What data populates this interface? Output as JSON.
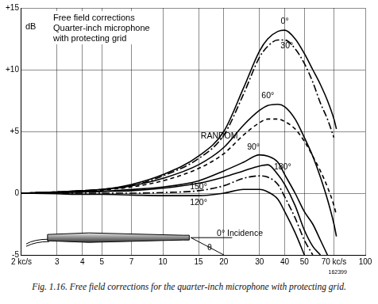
{
  "chart_data": {
    "type": "line",
    "title": [
      "Free field corrections",
      "Quarter-inch microphone",
      "with protecting grid"
    ],
    "y_label": "dB",
    "caption": "Fig. 1.16. Free field corrections for the quarter-inch microphone with protecting grid.",
    "log": "x",
    "grid": true,
    "xlim": [
      2,
      100
    ],
    "ylim": [
      -5,
      15
    ],
    "xticks": [
      {
        "value": 2,
        "label": "2 kc/s"
      },
      3,
      4,
      5,
      7,
      10,
      15,
      20,
      30,
      40,
      50,
      {
        "value": 70,
        "label": "70 kc/s"
      },
      100
    ],
    "yticks": [
      {
        "value": 15,
        "label": "+15"
      },
      {
        "value": 10,
        "label": "+10"
      },
      {
        "value": 5,
        "label": "+5"
      },
      0,
      -5
    ],
    "x": [
      2,
      3,
      4,
      5,
      7,
      10,
      15,
      20,
      25,
      30,
      33,
      37,
      40,
      45,
      50,
      55,
      60,
      65,
      70,
      72
    ],
    "series": [
      {
        "name": "0°",
        "color": "#000000",
        "line_style": "solid",
        "label_x": 40,
        "label_y": 13.9,
        "values": [
          0,
          0.1,
          0.2,
          0.3,
          0.7,
          1.5,
          3,
          5,
          8.5,
          11.5,
          12.5,
          13.1,
          13.2,
          12.5,
          11.3,
          10,
          8.8,
          7.5,
          6,
          5.2
        ]
      },
      {
        "name": "30°",
        "color": "#000000",
        "line_style": "dashdot",
        "label_x": 41,
        "label_y": 11.9,
        "values": [
          0,
          0.1,
          0.2,
          0.3,
          0.6,
          1.4,
          2.8,
          4.7,
          8,
          11,
          11.9,
          12.4,
          12.4,
          11.7,
          10.5,
          9,
          7.3,
          6,
          4.5,
          null
        ]
      },
      {
        "name": "60°",
        "color": "#000000",
        "line_style": "solid",
        "label_x": 33,
        "label_y": 7.9,
        "values": [
          0,
          0.1,
          0.2,
          0.3,
          0.6,
          1.2,
          2.3,
          3.7,
          5.5,
          6.7,
          7.1,
          7.2,
          7,
          6,
          4.5,
          3,
          1.3,
          -0.5,
          -2.5,
          -3.5
        ]
      },
      {
        "name": "RANDOM",
        "color": "#000000",
        "line_style": "dashed",
        "label_x": 19,
        "label_y": 4.6,
        "values": [
          0,
          0.1,
          0.15,
          0.25,
          0.5,
          1,
          2,
          3.2,
          4.7,
          5.7,
          6,
          6,
          5.8,
          5.2,
          4.2,
          3,
          1.8,
          0.5,
          -1,
          -1.8
        ]
      },
      {
        "name": "90°",
        "color": "#000000",
        "line_style": "solid",
        "label_x": 28,
        "label_y": 3.7,
        "values": [
          0,
          0.05,
          0.1,
          0.15,
          0.3,
          0.5,
          1,
          1.8,
          2.5,
          3.1,
          3,
          2.5,
          1.5,
          0,
          -1.5,
          -2.5,
          -3.8,
          -5,
          null,
          null
        ]
      },
      {
        "name": "180°",
        "color": "#000000",
        "line_style": "solid",
        "label_x": 39,
        "label_y": 2.1,
        "values": [
          0,
          0.05,
          0.1,
          0.15,
          0.2,
          0.4,
          0.8,
          1.3,
          1.8,
          2.2,
          2.3,
          1.5,
          0.7,
          -1,
          -3,
          -4.3,
          -5,
          null,
          null,
          null
        ]
      },
      {
        "name": "150°",
        "color": "#000000",
        "line_style": "dashdot",
        "label_x": 15,
        "label_y": 0.5,
        "values": [
          0,
          0,
          0,
          0,
          0,
          0.05,
          0.2,
          0.6,
          1.2,
          1.4,
          1.3,
          0.7,
          -0.3,
          -2,
          -3.8,
          -5,
          null,
          null,
          null,
          null
        ]
      },
      {
        "name": "120°",
        "color": "#000000",
        "line_style": "solid",
        "label_x": 15,
        "label_y": -0.8,
        "values": [
          0,
          -0.05,
          -0.1,
          -0.1,
          -0.15,
          -0.2,
          -0.2,
          0,
          0.3,
          0.3,
          0.1,
          -0.5,
          -1.5,
          -3.2,
          -5,
          null,
          null,
          null,
          null,
          null
        ]
      }
    ],
    "annotations": [
      {
        "text": "0° Incidence",
        "x": 24,
        "y": -3.3
      },
      {
        "text": "θ",
        "x": 17,
        "y": -4.4
      },
      {
        "text": "162399",
        "x": 73,
        "y": -6.4
      }
    ]
  }
}
